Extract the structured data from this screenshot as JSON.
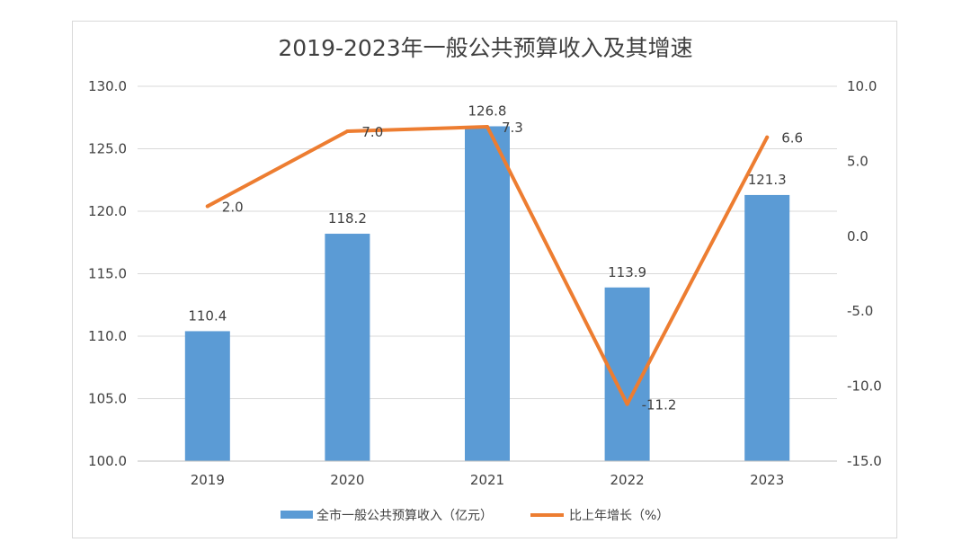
{
  "chart_data": {
    "type": "bar",
    "title": "2019-2023年一般公共预算收入及其增速",
    "categories": [
      "2019",
      "2020",
      "2021",
      "2022",
      "2023"
    ],
    "series": [
      {
        "name": "全市一般公共预算收入（亿元）",
        "type": "bar",
        "axis": "left",
        "values": [
          110.4,
          118.2,
          126.8,
          113.9,
          121.3
        ],
        "labels": [
          "110.4",
          "118.2",
          "126.8",
          "113.9",
          "121.3"
        ],
        "color": "#5b9bd5"
      },
      {
        "name": "比上年增长（%）",
        "type": "line",
        "axis": "right",
        "values": [
          2.0,
          7.0,
          7.3,
          -11.2,
          6.6
        ],
        "labels": [
          "2.0",
          "7.0",
          "7.3",
          "-11.2",
          "6.6"
        ],
        "color": "#ed7d31"
      }
    ],
    "y_left": {
      "min": 100,
      "max": 130,
      "ticks": [
        "100.0",
        "105.0",
        "110.0",
        "115.0",
        "120.0",
        "125.0",
        "130.0"
      ]
    },
    "y_right": {
      "min": -15,
      "max": 10,
      "ticks": [
        "-15.0",
        "-10.0",
        "-5.0",
        "0.0",
        "5.0",
        "10.0"
      ]
    },
    "grid": true,
    "legend_position": "bottom"
  }
}
